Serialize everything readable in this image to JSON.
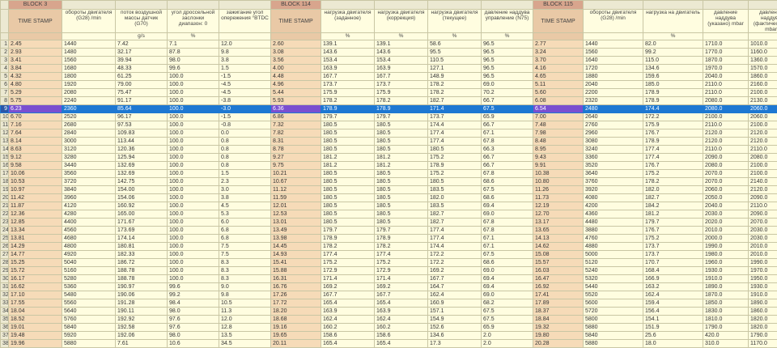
{
  "blocks": [
    "BLOCK 3",
    "BLOCK 114",
    "BLOCK 115"
  ],
  "headers": [
    "TIME STAMP",
    "обороты двигателя (G28) /min",
    "поток воздушной массы датчик (G70)",
    "угол дроссельной заслонки диапазон: 0",
    "зажигание угол опережения °BTDC",
    "TIME STAMP",
    "нагрузка двигателя (заданное)",
    "нагрузка двигателя (коррекция)",
    "нагрузка двигателя (текущее)",
    "давление наддува управление (N75)",
    "TIME STAMP",
    "обороты двигателя (G28) /min",
    "нагрузка на двигатель",
    "давление наддува (указано) mbar",
    "давление наддува (фактическое) mbar"
  ],
  "units": [
    "",
    "",
    "g/s",
    "%",
    "",
    "",
    "%",
    "%",
    "%",
    "%",
    "",
    "",
    "%",
    "",
    ""
  ],
  "selected_row": 8,
  "rows": [
    [
      "2.45",
      "1440",
      "7.42",
      "7.1",
      "12.0",
      "2.60",
      "139.1",
      "139.1",
      "58.6",
      "96.5",
      "2.77",
      "1440",
      "82.0",
      "1710.0",
      "1010.0"
    ],
    [
      "2.93",
      "1480",
      "32.17",
      "87.8",
      "9.8",
      "3.08",
      "143.6",
      "143.6",
      "95.5",
      "96.5",
      "3.24",
      "1560",
      "99.2",
      "1770.0",
      "1160.0"
    ],
    [
      "3.41",
      "1560",
      "39.94",
      "98.0",
      "3.8",
      "3.56",
      "153.4",
      "153.4",
      "110.5",
      "96.5",
      "3.70",
      "1640",
      "115.0",
      "1870.0",
      "1360.0"
    ],
    [
      "3.84",
      "1680",
      "48.33",
      "99.6",
      "1.5",
      "4.00",
      "163.9",
      "163.9",
      "127.1",
      "96.5",
      "4.16",
      "1720",
      "134.6",
      "1970.0",
      "1570.0"
    ],
    [
      "4.32",
      "1800",
      "61.25",
      "100.0",
      "-1.5",
      "4.48",
      "167.7",
      "167.7",
      "148.9",
      "96.5",
      "4.65",
      "1880",
      "159.6",
      "2040.0",
      "1860.0"
    ],
    [
      "4.80",
      "1920",
      "79.00",
      "100.0",
      "-4.5",
      "4.96",
      "173.7",
      "173.7",
      "178.2",
      "69.0",
      "5.11",
      "2040",
      "185.0",
      "2110.0",
      "2160.0"
    ],
    [
      "5.29",
      "2080",
      "75.47",
      "100.0",
      "-4.5",
      "5.44",
      "175.9",
      "175.9",
      "178.2",
      "70.2",
      "5.60",
      "2200",
      "178.9",
      "2110.0",
      "2100.0"
    ],
    [
      "5.75",
      "2240",
      "91.17",
      "100.0",
      "-3.8",
      "5.93",
      "178.2",
      "178.2",
      "182.7",
      "66.7",
      "6.08",
      "2320",
      "178.9",
      "2080.0",
      "2130.0"
    ],
    [
      "6.23",
      "2360",
      "85.64",
      "100.0",
      "-3.0",
      "6.36",
      "178.9",
      "178.9",
      "171.4",
      "67.5",
      "6.54",
      "2480",
      "174.4",
      "2080.0",
      "2060.0"
    ],
    [
      "6.70",
      "2520",
      "96.17",
      "100.0",
      "-1.5",
      "6.86",
      "179.7",
      "179.7",
      "173.7",
      "65.9",
      "7.00",
      "2640",
      "172.2",
      "2100.0",
      "2060.0"
    ],
    [
      "7.16",
      "2680",
      "97.53",
      "100.0",
      "-0.8",
      "7.32",
      "180.5",
      "180.5",
      "174.4",
      "66.7",
      "7.48",
      "2760",
      "175.9",
      "2110.0",
      "2100.0"
    ],
    [
      "7.64",
      "2840",
      "109.83",
      "100.0",
      "0.0",
      "7.82",
      "180.5",
      "180.5",
      "177.4",
      "67.1",
      "7.98",
      "2960",
      "176.7",
      "2120.0",
      "2120.0"
    ],
    [
      "8.14",
      "3000",
      "113.44",
      "100.0",
      "0.8",
      "8.31",
      "180.5",
      "180.5",
      "177.4",
      "67.8",
      "8.48",
      "3080",
      "178.9",
      "2120.0",
      "2120.0"
    ],
    [
      "8.63",
      "3120",
      "120.36",
      "100.0",
      "0.8",
      "8.78",
      "180.5",
      "180.5",
      "180.5",
      "66.3",
      "8.95",
      "3240",
      "177.4",
      "2110.0",
      "2110.0"
    ],
    [
      "9.12",
      "3280",
      "125.94",
      "100.0",
      "0.8",
      "9.27",
      "181.2",
      "181.2",
      "175.2",
      "66.7",
      "9.43",
      "3360",
      "177.4",
      "2090.0",
      "2080.0"
    ],
    [
      "9.58",
      "3440",
      "132.69",
      "100.0",
      "0.8",
      "9.75",
      "181.2",
      "181.2",
      "178.9",
      "66.7",
      "9.91",
      "3520",
      "176.7",
      "2080.0",
      "2100.0"
    ],
    [
      "10.06",
      "3560",
      "132.69",
      "100.0",
      "1.5",
      "10.21",
      "180.5",
      "180.5",
      "175.2",
      "67.8",
      "10.38",
      "3640",
      "175.2",
      "2070.0",
      "2100.0"
    ],
    [
      "10.53",
      "3720",
      "142.75",
      "100.0",
      "2.3",
      "10.67",
      "180.5",
      "180.5",
      "180.5",
      "68.6",
      "10.80",
      "3760",
      "178.2",
      "2070.0",
      "2140.0"
    ],
    [
      "10.97",
      "3840",
      "154.00",
      "100.0",
      "3.0",
      "11.12",
      "180.5",
      "180.5",
      "183.5",
      "67.5",
      "11.26",
      "3920",
      "182.0",
      "2060.0",
      "2120.0"
    ],
    [
      "11.42",
      "3960",
      "154.06",
      "100.0",
      "3.8",
      "11.59",
      "180.5",
      "180.5",
      "182.0",
      "68.6",
      "11.73",
      "4080",
      "182.7",
      "2050.0",
      "2090.0"
    ],
    [
      "11.87",
      "4120",
      "160.92",
      "100.0",
      "4.5",
      "12.01",
      "180.5",
      "180.5",
      "183.5",
      "69.4",
      "12.19",
      "4200",
      "184.2",
      "2040.0",
      "2110.0"
    ],
    [
      "12.36",
      "4280",
      "165.00",
      "100.0",
      "5.3",
      "12.53",
      "180.5",
      "180.5",
      "182.7",
      "69.0",
      "12.70",
      "4360",
      "181.2",
      "2030.0",
      "2090.0"
    ],
    [
      "12.85",
      "4400",
      "171.67",
      "100.0",
      "6.0",
      "13.01",
      "180.5",
      "180.5",
      "182.7",
      "67.8",
      "13.17",
      "4480",
      "179.7",
      "2020.0",
      "2070.0"
    ],
    [
      "13.34",
      "4560",
      "173.69",
      "100.0",
      "6.8",
      "13.49",
      "179.7",
      "179.7",
      "177.4",
      "67.8",
      "13.65",
      "3880",
      "176.7",
      "2010.0",
      "2030.0"
    ],
    [
      "13.81",
      "4680",
      "174.14",
      "100.0",
      "6.8",
      "13.98",
      "178.9",
      "178.9",
      "177.4",
      "67.1",
      "14.13",
      "4760",
      "175.2",
      "2000.0",
      "2030.0"
    ],
    [
      "14.29",
      "4800",
      "180.81",
      "100.0",
      "7.5",
      "14.45",
      "178.2",
      "178.2",
      "174.4",
      "67.1",
      "14.62",
      "4880",
      "173.7",
      "1990.0",
      "2010.0"
    ],
    [
      "14.77",
      "4920",
      "182.33",
      "100.0",
      "7.5",
      "14.93",
      "177.4",
      "177.4",
      "172.2",
      "67.5",
      "15.08",
      "5000",
      "173.7",
      "1980.0",
      "2010.0"
    ],
    [
      "15.25",
      "5040",
      "186.72",
      "100.0",
      "8.3",
      "15.41",
      "175.2",
      "175.2",
      "172.2",
      "68.6",
      "15.57",
      "5120",
      "170.7",
      "1960.0",
      "1990.0"
    ],
    [
      "15.72",
      "5160",
      "188.78",
      "100.0",
      "8.3",
      "15.88",
      "172.9",
      "172.9",
      "169.2",
      "69.0",
      "16.03",
      "5240",
      "168.4",
      "1930.0",
      "1970.0"
    ],
    [
      "16.17",
      "5280",
      "188.78",
      "100.0",
      "8.3",
      "16.31",
      "171.4",
      "171.4",
      "167.7",
      "69.4",
      "16.47",
      "5320",
      "166.9",
      "1910.0",
      "1950.0"
    ],
    [
      "16.62",
      "5360",
      "190.97",
      "99.6",
      "9.0",
      "16.76",
      "169.2",
      "169.2",
      "164.7",
      "69.4",
      "16.92",
      "5440",
      "163.2",
      "1890.0",
      "1930.0"
    ],
    [
      "17.10",
      "5480",
      "190.06",
      "99.2",
      "9.8",
      "17.26",
      "167.7",
      "167.7",
      "162.4",
      "69.0",
      "17.41",
      "5520",
      "162.4",
      "1870.0",
      "1910.0"
    ],
    [
      "17.55",
      "5560",
      "191.28",
      "98.4",
      "10.5",
      "17.72",
      "165.4",
      "165.4",
      "160.9",
      "68.2",
      "17.89",
      "5600",
      "159.4",
      "1850.0",
      "1890.0"
    ],
    [
      "18.04",
      "5640",
      "190.11",
      "98.0",
      "11.3",
      "18.20",
      "163.9",
      "163.9",
      "157.1",
      "67.5",
      "18.37",
      "5720",
      "156.4",
      "1830.0",
      "1860.0"
    ],
    [
      "18.52",
      "5760",
      "192.92",
      "97.6",
      "12.0",
      "18.68",
      "162.4",
      "162.4",
      "154.9",
      "67.5",
      "18.84",
      "5800",
      "154.1",
      "1810.0",
      "1820.0"
    ],
    [
      "19.01",
      "5840",
      "192.58",
      "97.6",
      "12.8",
      "19.16",
      "160.2",
      "160.2",
      "152.6",
      "65.9",
      "19.32",
      "5880",
      "151.9",
      "1790.0",
      "1820.0"
    ],
    [
      "19.48",
      "5920",
      "192.06",
      "98.0",
      "13.5",
      "19.65",
      "158.6",
      "158.6",
      "134.6",
      "2.0",
      "19.80",
      "5840",
      "25.6",
      "420.0",
      "1790.0"
    ],
    [
      "19.96",
      "5880",
      "7.61",
      "10.6",
      "34.5",
      "20.11",
      "165.4",
      "165.4",
      "17.3",
      "2.0",
      "20.28",
      "5880",
      "18.0",
      "310.0",
      "1170.0"
    ]
  ]
}
